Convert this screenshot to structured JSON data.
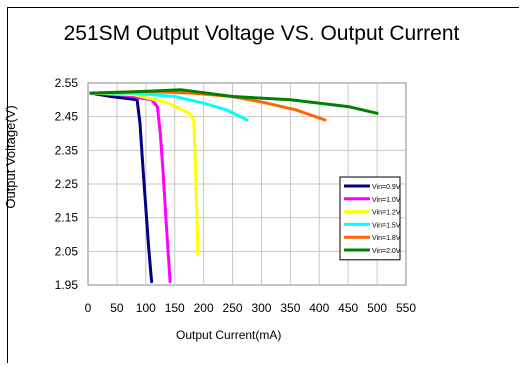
{
  "chart_data": {
    "type": "line",
    "title": "251SM Output Voltage VS. Output Current",
    "xlabel": "Output Current(mA)",
    "ylabel": "Output Voltage(V)",
    "xlim": [
      0,
      550
    ],
    "ylim": [
      1.95,
      2.55
    ],
    "x_ticks": [
      "0",
      "50",
      "100",
      "150",
      "200",
      "250",
      "300",
      "350",
      "400",
      "450",
      "500",
      "550"
    ],
    "y_ticks": [
      "2.55",
      "2.45",
      "2.35",
      "2.25",
      "2.15",
      "2.05",
      "1.95"
    ],
    "grid": true,
    "legend_position": "right",
    "series": [
      {
        "name": "Vin=0.9V",
        "color": "#000080",
        "x": [
          5,
          40,
          85,
          90,
          95,
          100,
          105,
          110
        ],
        "y": [
          2.52,
          2.51,
          2.5,
          2.43,
          2.3,
          2.18,
          2.06,
          1.96
        ]
      },
      {
        "name": "Vin=1.0V",
        "color": "#ff00ff",
        "x": [
          5,
          60,
          110,
          120,
          125,
          130,
          135,
          142
        ],
        "y": [
          2.52,
          2.515,
          2.5,
          2.48,
          2.4,
          2.28,
          2.14,
          1.96
        ]
      },
      {
        "name": "Vin=1.2V",
        "color": "#ffff00",
        "x": [
          5,
          80,
          140,
          175,
          183,
          186,
          188,
          190
        ],
        "y": [
          2.52,
          2.515,
          2.49,
          2.46,
          2.44,
          2.3,
          2.18,
          2.04
        ]
      },
      {
        "name": "Vin=1.5V",
        "color": "#00ffff",
        "x": [
          5,
          80,
          150,
          200,
          240,
          275
        ],
        "y": [
          2.52,
          2.52,
          2.51,
          2.49,
          2.47,
          2.44
        ]
      },
      {
        "name": "Vin=1.8V",
        "color": "#ff6600",
        "x": [
          5,
          100,
          180,
          250,
          310,
          360,
          410
        ],
        "y": [
          2.52,
          2.525,
          2.52,
          2.51,
          2.49,
          2.47,
          2.44
        ]
      },
      {
        "name": "Vin=2.0V",
        "color": "#008000",
        "x": [
          5,
          100,
          160,
          250,
          350,
          450,
          500
        ],
        "y": [
          2.52,
          2.525,
          2.53,
          2.51,
          2.5,
          2.48,
          2.46
        ]
      }
    ]
  }
}
